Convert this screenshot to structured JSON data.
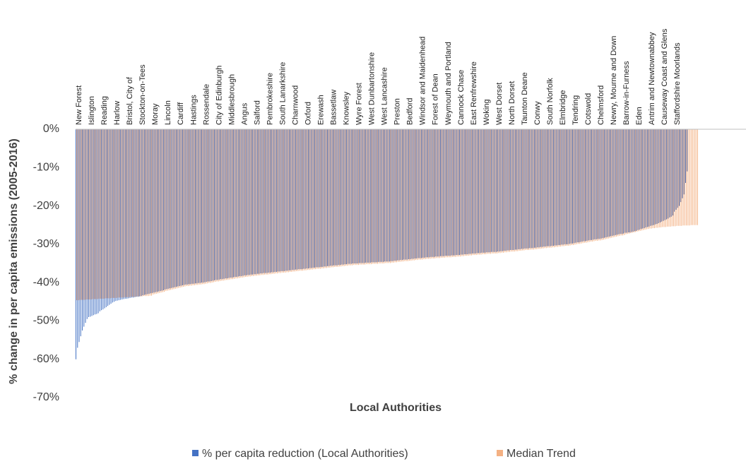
{
  "chart_data": {
    "type": "bar",
    "y_label": "% change in per capita emissions (2005-2016)",
    "x_label": "Local Authorities",
    "categories": [
      "New Forest",
      null,
      null,
      null,
      null,
      null,
      null,
      null,
      "Islington",
      null,
      null,
      null,
      null,
      null,
      null,
      null,
      "Reading",
      null,
      null,
      null,
      null,
      null,
      null,
      null,
      "Harlow",
      null,
      null,
      null,
      null,
      null,
      null,
      null,
      "Bristol, City of",
      null,
      null,
      null,
      null,
      null,
      null,
      null,
      "Stockton-on-Tees",
      null,
      null,
      null,
      null,
      null,
      null,
      null,
      "Moray",
      null,
      null,
      null,
      null,
      null,
      null,
      null,
      "Lincoln",
      null,
      null,
      null,
      null,
      null,
      null,
      null,
      "Cardiff",
      null,
      null,
      null,
      null,
      null,
      null,
      null,
      "Hastings",
      null,
      null,
      null,
      null,
      null,
      null,
      null,
      "Rossendale",
      null,
      null,
      null,
      null,
      null,
      null,
      null,
      "City of Edinburgh",
      null,
      null,
      null,
      null,
      null,
      null,
      null,
      "Middlesbrough",
      null,
      null,
      null,
      null,
      null,
      null,
      null,
      "Angus",
      null,
      null,
      null,
      null,
      null,
      null,
      null,
      "Salford",
      null,
      null,
      null,
      null,
      null,
      null,
      null,
      "Pembrokeshire",
      null,
      null,
      null,
      null,
      null,
      null,
      null,
      "South Lanarkshire",
      null,
      null,
      null,
      null,
      null,
      null,
      null,
      "Charnwood",
      null,
      null,
      null,
      null,
      null,
      null,
      null,
      "Oxford",
      null,
      null,
      null,
      null,
      null,
      null,
      null,
      "Erewash",
      null,
      null,
      null,
      null,
      null,
      null,
      null,
      "Bassetlaw",
      null,
      null,
      null,
      null,
      null,
      null,
      null,
      "Knowsley",
      null,
      null,
      null,
      null,
      null,
      null,
      null,
      "Wyre Forest",
      null,
      null,
      null,
      null,
      null,
      null,
      null,
      "West Dunbartonshire",
      null,
      null,
      null,
      null,
      null,
      null,
      null,
      "West Lancashire",
      null,
      null,
      null,
      null,
      null,
      null,
      null,
      "Preston",
      null,
      null,
      null,
      null,
      null,
      null,
      null,
      "Bedford",
      null,
      null,
      null,
      null,
      null,
      null,
      null,
      "Windsor and Maidenhead",
      null,
      null,
      null,
      null,
      null,
      null,
      null,
      "Forest of Dean",
      null,
      null,
      null,
      null,
      null,
      null,
      null,
      "Weymouth and Portland",
      null,
      null,
      null,
      null,
      null,
      null,
      null,
      "Cannock Chase",
      null,
      null,
      null,
      null,
      null,
      null,
      null,
      "East Renfrewshire",
      null,
      null,
      null,
      null,
      null,
      null,
      null,
      "Woking",
      null,
      null,
      null,
      null,
      null,
      null,
      null,
      "West Dorset",
      null,
      null,
      null,
      null,
      null,
      null,
      null,
      "North Dorset",
      null,
      null,
      null,
      null,
      null,
      null,
      null,
      "Taunton Deane",
      null,
      null,
      null,
      null,
      null,
      null,
      null,
      "Conwy",
      null,
      null,
      null,
      null,
      null,
      null,
      null,
      "South Norfolk",
      null,
      null,
      null,
      null,
      null,
      null,
      null,
      "Elmbridge",
      null,
      null,
      null,
      null,
      null,
      null,
      null,
      "Tendring",
      null,
      null,
      null,
      null,
      null,
      null,
      null,
      "Cotswold",
      null,
      null,
      null,
      null,
      null,
      null,
      null,
      "Chelmsford",
      null,
      null,
      null,
      null,
      null,
      null,
      null,
      "Newry, Mourne and Down",
      null,
      null,
      null,
      null,
      null,
      null,
      null,
      "Barrow-in-Furness",
      null,
      null,
      null,
      null,
      null,
      null,
      null,
      "Eden",
      null,
      null,
      null,
      null,
      null,
      null,
      null,
      "Antrim and Newtownabbey",
      null,
      null,
      null,
      null,
      null,
      null,
      null,
      "Causeway Coast and Glens",
      null,
      null,
      null,
      null,
      null,
      null,
      null,
      "Staffordshire Moorlands",
      null,
      null,
      null,
      null,
      null,
      null,
      null,
      null,
      null,
      null,
      null,
      null,
      null,
      null
    ],
    "series": [
      {
        "name": "%  per capita reduction (Local Authorities)",
        "color": "#4472c4",
        "values": [
          -60,
          -57,
          -55.5,
          -54,
          -52.5,
          -51.5,
          -50.5,
          -49.5,
          -49,
          -48.9,
          -48.7,
          -48.5,
          -48.3,
          -48.2,
          -48,
          -47.5,
          -47.2,
          -47,
          -46.7,
          -46.4,
          -46.1,
          -45.8,
          -45.5,
          -45.2,
          -45,
          -44.8,
          -44.7,
          -44.6,
          -44.5,
          -44.4,
          -44.3,
          -44.2,
          -44.2,
          -44.1,
          -44,
          -43.9,
          -43.9,
          -43.8,
          -43.7,
          -43.7,
          -43.6,
          -43.5,
          -43.3,
          -43.2,
          -43.1,
          -43,
          -42.9,
          -42.8,
          -42.7,
          -42.6,
          -42.5,
          -42.4,
          -42.3,
          -42.2,
          -42.1,
          -42,
          -41.8,
          -41.7,
          -41.6,
          -41.5,
          -41.4,
          -41.3,
          -41.2,
          -41.1,
          -41,
          -40.9,
          -40.8,
          -40.7,
          -40.6,
          -40.5,
          -40.5,
          -40.4,
          -40.4,
          -40.3,
          -40.3,
          -40.2,
          -40.2,
          -40.1,
          -40.1,
          -40,
          -40,
          -39.9,
          -39.8,
          -39.7,
          -39.7,
          -39.6,
          -39.5,
          -39.4,
          -39.3,
          -39.3,
          -39.2,
          -39.1,
          -39.1,
          -39,
          -38.9,
          -38.9,
          -38.8,
          -38.7,
          -38.7,
          -38.6,
          -38.5,
          -38.5,
          -38.4,
          -38.3,
          -38.3,
          -38.2,
          -38.1,
          -38.1,
          -38,
          -38,
          -37.9,
          -37.9,
          -37.8,
          -37.8,
          -37.7,
          -37.7,
          -37.6,
          -37.6,
          -37.5,
          -37.5,
          -37.5,
          -37.4,
          -37.4,
          -37.3,
          -37.3,
          -37.2,
          -37.2,
          -37.1,
          -37.1,
          -37,
          -37,
          -37,
          -36.9,
          -36.9,
          -36.8,
          -36.8,
          -36.7,
          -36.7,
          -36.6,
          -36.6,
          -36.5,
          -36.5,
          -36.5,
          -36.4,
          -36.4,
          -36.3,
          -36.3,
          -36.2,
          -36.2,
          -36.1,
          -36.1,
          -36,
          -36,
          -36,
          -35.9,
          -35.9,
          -35.8,
          -35.8,
          -35.7,
          -35.7,
          -35.6,
          -35.6,
          -35.5,
          -35.5,
          -35.5,
          -35.4,
          -35.4,
          -35.3,
          -35.3,
          -35.2,
          -35.2,
          -35.1,
          -35.1,
          -35.1,
          -35,
          -35,
          -35,
          -35,
          -34.9,
          -34.9,
          -34.9,
          -34.9,
          -34.8,
          -34.8,
          -34.8,
          -34.8,
          -34.7,
          -34.7,
          -34.7,
          -34.7,
          -34.6,
          -34.6,
          -34.6,
          -34.6,
          -34.5,
          -34.5,
          -34.5,
          -34.5,
          -34.4,
          -34.4,
          -34.3,
          -34.3,
          -34.2,
          -34.2,
          -34.1,
          -34.1,
          -34,
          -34,
          -34,
          -33.9,
          -33.9,
          -33.8,
          -33.8,
          -33.7,
          -33.7,
          -33.6,
          -33.6,
          -33.6,
          -33.5,
          -33.5,
          -33.4,
          -33.4,
          -33.4,
          -33.3,
          -33.3,
          -33.3,
          -33.2,
          -33.2,
          -33.2,
          -33.1,
          -33.1,
          -33.1,
          -33,
          -33,
          -33,
          -33,
          -32.9,
          -32.9,
          -32.9,
          -32.8,
          -32.8,
          -32.8,
          -32.7,
          -32.7,
          -32.6,
          -32.6,
          -32.6,
          -32.5,
          -32.5,
          -32.4,
          -32.4,
          -32.4,
          -32.3,
          -32.3,
          -32.3,
          -32.2,
          -32.2,
          -32.2,
          -32.1,
          -32.1,
          -32.1,
          -32,
          -32,
          -32,
          -32,
          -31.9,
          -31.9,
          -31.8,
          -31.8,
          -31.7,
          -31.7,
          -31.6,
          -31.6,
          -31.5,
          -31.5,
          -31.5,
          -31.4,
          -31.4,
          -31.3,
          -31.3,
          -31.2,
          -31.2,
          -31.1,
          -31.1,
          -31.1,
          -31,
          -31,
          -31,
          -30.9,
          -30.9,
          -30.8,
          -30.8,
          -30.7,
          -30.7,
          -30.6,
          -30.6,
          -30.5,
          -30.5,
          -30.5,
          -30.4,
          -30.4,
          -30.3,
          -30.3,
          -30.2,
          -30.2,
          -30.1,
          -30.1,
          -30,
          -30,
          -30,
          -29.9,
          -29.8,
          -29.8,
          -29.7,
          -29.6,
          -29.5,
          -29.5,
          -29.4,
          -29.3,
          -29.2,
          -29.2,
          -29.1,
          -29,
          -28.9,
          -28.9,
          -28.8,
          -28.7,
          -28.7,
          -28.6,
          -28.6,
          -28.5,
          -28.4,
          -28.3,
          -28.2,
          -28.1,
          -28,
          -27.9,
          -27.8,
          -27.7,
          -27.6,
          -27.5,
          -27.4,
          -27.3,
          -27.3,
          -27.2,
          -27,
          -27,
          -26.9,
          -26.9,
          -26.8,
          -26.7,
          -26.6,
          -26.5,
          -26.3,
          -26.2,
          -26,
          -25.9,
          -25.8,
          -25.6,
          -25.5,
          -25.4,
          -25.2,
          -25.1,
          -25,
          -24.8,
          -24.7,
          -24.5,
          -24.3,
          -24.1,
          -23.9,
          -23.7,
          -23.5,
          -23.3,
          -23,
          -22.8,
          -22.5,
          -21.5,
          -21,
          -20.5,
          -20,
          -19,
          -18,
          -17,
          -14,
          -11,
          null,
          null,
          null,
          null,
          null,
          null
        ]
      },
      {
        "name": "Median Trend",
        "color": "#f4b183",
        "values": [
          -44.6,
          -44.6,
          -44.5,
          -44.5,
          -44.5,
          -44.5,
          -44.4,
          -44.4,
          -44.4,
          -44.4,
          -44.3,
          -44.3,
          -44.3,
          -44.3,
          -44.2,
          -44.2,
          -44.2,
          -44.2,
          -44.1,
          -44.1,
          -44.1,
          -44.1,
          -44,
          -44,
          -44,
          -44,
          -43.9,
          -43.9,
          -43.9,
          -43.9,
          -43.8,
          -43.8,
          -43.8,
          -43.8,
          -43.7,
          -43.7,
          -43.7,
          -43.7,
          -43.6,
          -43.6,
          -43.6,
          -43.6,
          -43.5,
          -43.5,
          -43.5,
          -43.5,
          -43.4,
          -43.4,
          -43.1,
          -43,
          -42.9,
          -42.8,
          -42.7,
          -42.6,
          -42.5,
          -42.4,
          -42.2,
          -42.1,
          -42,
          -41.9,
          -41.8,
          -41.7,
          -41.6,
          -41.5,
          -41.4,
          -41.3,
          -41.2,
          -41.1,
          -41,
          -40.9,
          -40.9,
          -40.8,
          -40.8,
          -40.7,
          -40.7,
          -40.6,
          -40.6,
          -40.5,
          -40.5,
          -40.4,
          -40.4,
          -40.3,
          -40.2,
          -40.1,
          -40.1,
          -40,
          -39.9,
          -39.8,
          -39.7,
          -39.7,
          -39.6,
          -39.5,
          -39.5,
          -39.4,
          -39.3,
          -39.3,
          -39.2,
          -39.1,
          -39.1,
          -39,
          -38.9,
          -38.9,
          -38.8,
          -38.7,
          -38.7,
          -38.6,
          -38.5,
          -38.5,
          -38.4,
          -38.4,
          -38.3,
          -38.3,
          -38.2,
          -38.2,
          -38.1,
          -38.1,
          -38,
          -38,
          -37.9,
          -37.9,
          -37.9,
          -37.8,
          -37.8,
          -37.7,
          -37.7,
          -37.6,
          -37.6,
          -37.5,
          -37.5,
          -37.4,
          -37.4,
          -37.4,
          -37.3,
          -37.3,
          -37.2,
          -37.2,
          -37.1,
          -37.1,
          -37,
          -37,
          -36.9,
          -36.9,
          -36.9,
          -36.8,
          -36.8,
          -36.7,
          -36.7,
          -36.6,
          -36.6,
          -36.5,
          -36.5,
          -36.4,
          -36.4,
          -36.4,
          -36.3,
          -36.3,
          -36.2,
          -36.2,
          -36.1,
          -36.1,
          -36,
          -36,
          -35.9,
          -35.9,
          -35.9,
          -35.8,
          -35.8,
          -35.7,
          -35.7,
          -35.6,
          -35.6,
          -35.5,
          -35.5,
          -35.5,
          -35.4,
          -35.4,
          -35.4,
          -35.4,
          -35.3,
          -35.3,
          -35.3,
          -35.3,
          -35.2,
          -35.2,
          -35.2,
          -35.2,
          -35.1,
          -35.1,
          -35.1,
          -35.1,
          -35,
          -35,
          -35,
          -35,
          -34.9,
          -34.9,
          -34.9,
          -34.9,
          -34.8,
          -34.8,
          -34.7,
          -34.7,
          -34.6,
          -34.6,
          -34.5,
          -34.5,
          -34.4,
          -34.4,
          -34.4,
          -34.3,
          -34.3,
          -34.2,
          -34.2,
          -34.1,
          -34.1,
          -34,
          -34,
          -34,
          -33.9,
          -33.9,
          -33.8,
          -33.8,
          -33.8,
          -33.7,
          -33.7,
          -33.7,
          -33.6,
          -33.6,
          -33.6,
          -33.5,
          -33.5,
          -33.5,
          -33.4,
          -33.4,
          -33.4,
          -33.4,
          -33.3,
          -33.3,
          -33.3,
          -33.2,
          -33.2,
          -33.2,
          -33.1,
          -33.1,
          -33,
          -33,
          -33,
          -32.9,
          -32.9,
          -32.8,
          -32.8,
          -32.8,
          -32.7,
          -32.7,
          -32.7,
          -32.6,
          -32.6,
          -32.6,
          -32.5,
          -32.5,
          -32.5,
          -32.4,
          -32.4,
          -32.4,
          -32.4,
          -32.3,
          -32.3,
          -32.2,
          -32.2,
          -32.1,
          -32.1,
          -32,
          -32,
          -31.9,
          -31.9,
          -31.9,
          -31.8,
          -31.8,
          -31.7,
          -31.7,
          -31.6,
          -31.6,
          -31.5,
          -31.5,
          -31.5,
          -31.4,
          -31.4,
          -31.4,
          -31.3,
          -31.3,
          -31.2,
          -31.2,
          -31.1,
          -31.1,
          -31,
          -31,
          -30.9,
          -30.9,
          -30.9,
          -30.8,
          -30.8,
          -30.7,
          -30.7,
          -30.6,
          -30.6,
          -30.5,
          -30.5,
          -30.4,
          -30.4,
          -30.4,
          -30.3,
          -30.2,
          -30.2,
          -30.1,
          -30,
          -29.9,
          -29.9,
          -29.8,
          -29.7,
          -29.6,
          -29.6,
          -29.5,
          -29.4,
          -29.3,
          -29.3,
          -29.2,
          -29.1,
          -29.1,
          -29,
          -29,
          -28.9,
          -28.8,
          -28.7,
          -28.6,
          -28.5,
          -28.4,
          -28.3,
          -28.2,
          -28.1,
          -28,
          -27.9,
          -27.8,
          -27.7,
          -27.7,
          -27.6,
          -27.4,
          -27.3,
          -27.2,
          -27.1,
          -27,
          -26.9,
          -26.8,
          -26.7,
          -26.6,
          -26.5,
          -26.4,
          -26.3,
          -26.2,
          -26.1,
          -26,
          -25.9,
          -25.9,
          -25.8,
          -25.8,
          -25.7,
          -25.7,
          -25.6,
          -25.6,
          -25.5,
          -25.5,
          -25.5,
          -25.4,
          -25.4,
          -25.4,
          -25.3,
          -25.3,
          -25.3,
          -25.2,
          -25.2,
          -25.2,
          -25.2,
          -25.1,
          -25.1,
          -25.1,
          -25.1,
          -25.1,
          -25,
          -25,
          -25,
          -25,
          -25
        ]
      }
    ],
    "ylim": [
      -70,
      0
    ],
    "yticks": [
      {
        "value": -70,
        "label": "-70%"
      },
      {
        "value": -60,
        "label": "-60%"
      },
      {
        "value": -50,
        "label": "-50%"
      },
      {
        "value": -40,
        "label": "-40%"
      },
      {
        "value": -30,
        "label": "-30%"
      },
      {
        "value": -20,
        "label": "-20%"
      },
      {
        "value": -10,
        "label": "-10%"
      },
      {
        "value": 0,
        "label": "0%"
      }
    ],
    "grid": false,
    "legend": "bottom"
  }
}
